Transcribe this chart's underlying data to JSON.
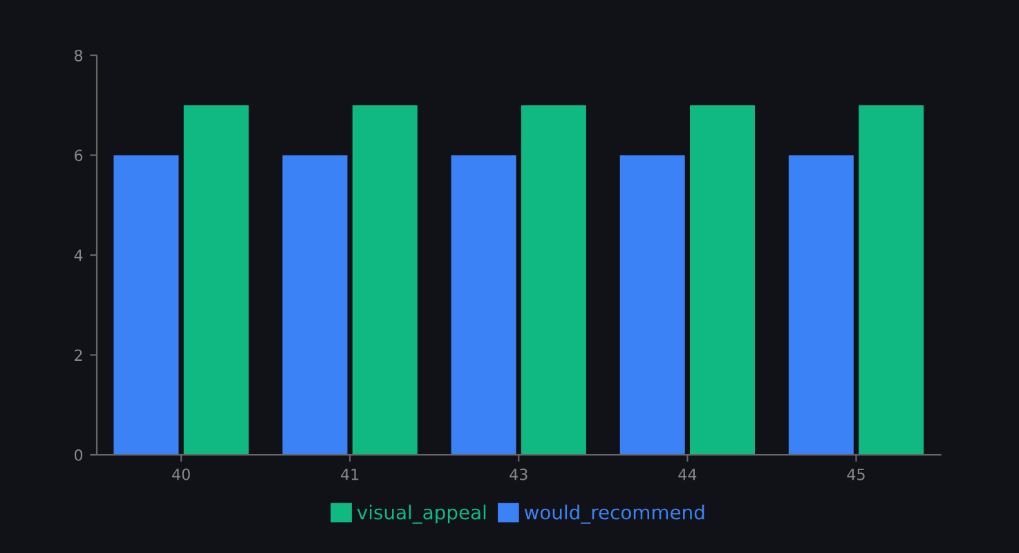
{
  "chart_data": {
    "type": "bar",
    "categories": [
      "40",
      "41",
      "43",
      "44",
      "45"
    ],
    "series": [
      {
        "name": "would_recommend",
        "color": "#3b82f6",
        "values": [
          6,
          6,
          6,
          6,
          6
        ]
      },
      {
        "name": "visual_appeal",
        "color": "#10b981",
        "values": [
          7,
          7,
          7,
          7,
          7
        ]
      }
    ],
    "ylim": [
      0,
      8
    ],
    "yticks": [
      0,
      2,
      4,
      6,
      8
    ],
    "grid": false,
    "legend": "bottom"
  }
}
